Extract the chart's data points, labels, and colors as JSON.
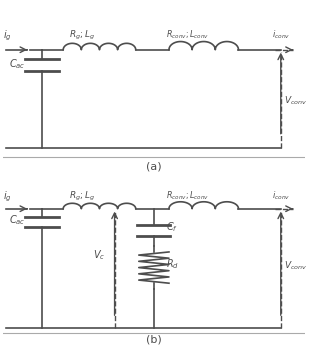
{
  "fig_width": 3.14,
  "fig_height": 3.48,
  "dpi": 100,
  "background_color": "#ffffff",
  "line_color": "#4d4d4d",
  "text_color": "#4d4d4d",
  "label_a": "(a)",
  "label_b": "(b)"
}
